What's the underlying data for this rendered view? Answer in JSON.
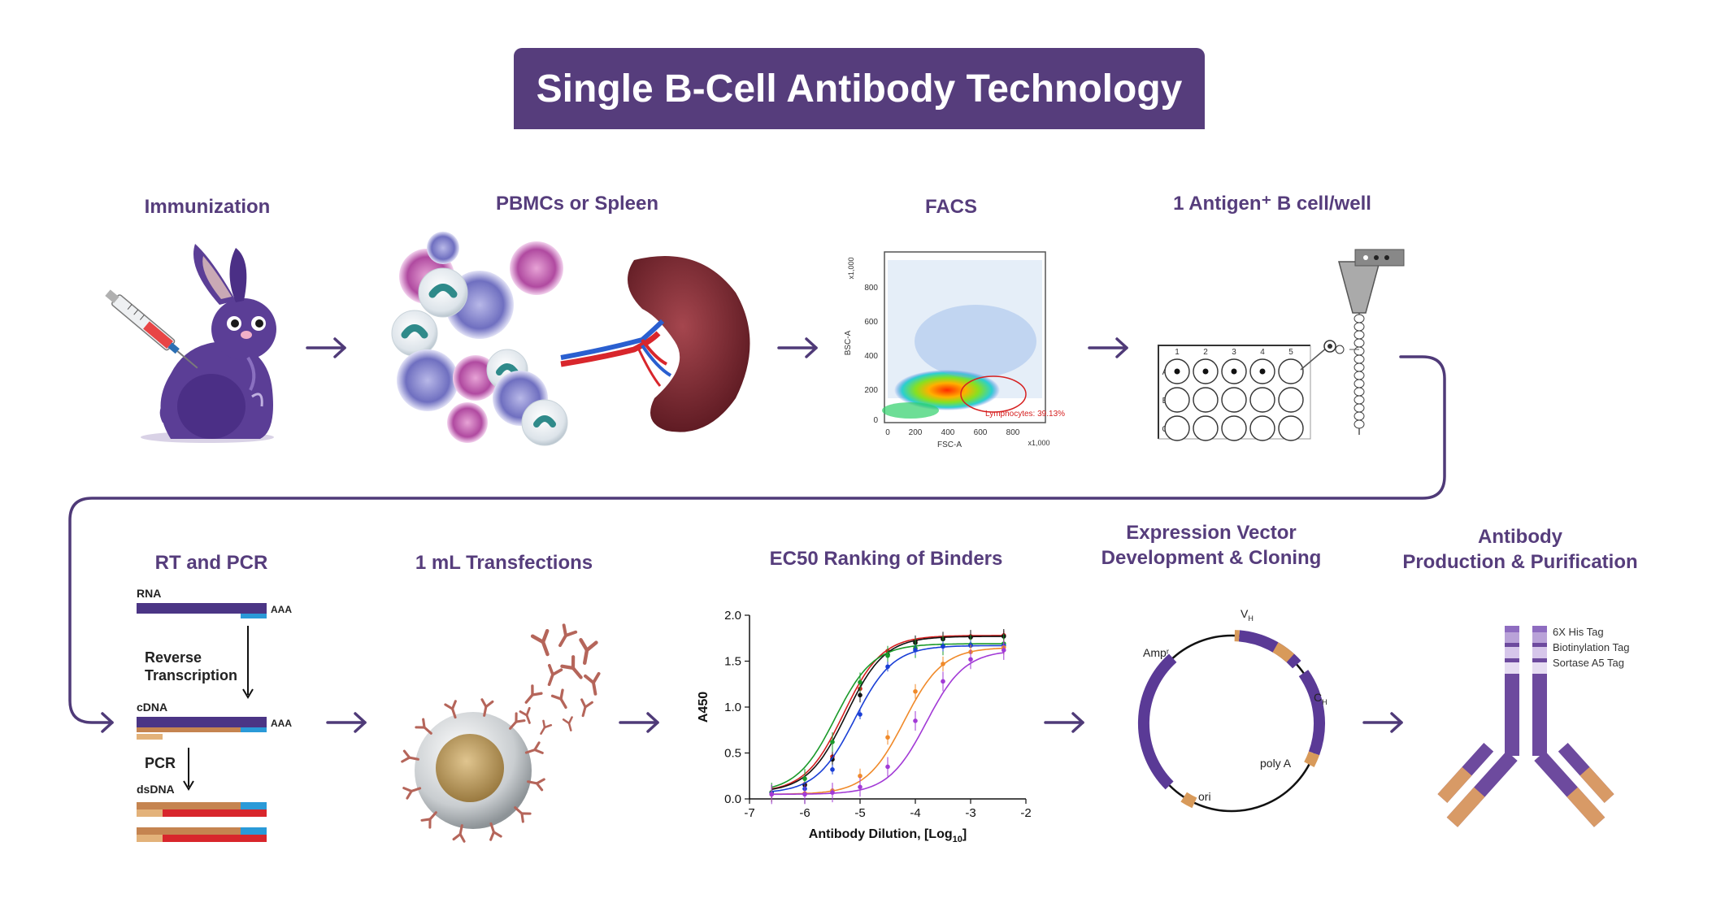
{
  "title": "Single B-Cell Antibody Technology",
  "steps": {
    "immunization": "Immunization",
    "pbmcs": "PBMCs or Spleen",
    "facs": "FACS",
    "antigen_cell": "1 Antigen⁺ B cell/well",
    "rt_pcr": "RT and PCR",
    "transfections": "1 mL Transfections",
    "ec50": "EC50 Ranking of Binders",
    "vector_line1": "Expression Vector",
    "vector_line2": "Development & Cloning",
    "antibody_line1": "Antibody",
    "antibody_line2": "Production & Purification"
  },
  "facs_plot": {
    "ylabel": "BSC-A",
    "xlabel": "FSC-A",
    "yscale": "x1,000",
    "xscale": "x1,000",
    "yticks": [
      "0",
      "200",
      "400",
      "600",
      "800"
    ],
    "xticks": [
      "0",
      "200",
      "400",
      "600",
      "800"
    ],
    "gate_label": "Lymphocytes: 39.13%"
  },
  "well_plate": {
    "columns": [
      "1",
      "2",
      "3",
      "4",
      "5"
    ],
    "rows": [
      "A",
      "B",
      "C"
    ]
  },
  "rt_pcr_diagram": {
    "rna": "RNA",
    "polya1": "AAA",
    "reverse1": "Reverse",
    "reverse2": "Transcription",
    "cdna": "cDNA",
    "polya2": "AAA",
    "pcr": "PCR",
    "dsdna": "dsDNA"
  },
  "chart_data": {
    "type": "line",
    "xlabel_main": "Antibody Dilution, [Log",
    "xlabel_sub": "10",
    "xlabel_end": "]",
    "ylabel": "A450",
    "xlim": [
      -7,
      -2
    ],
    "ylim": [
      0,
      2.0
    ],
    "xticks": [
      "-7",
      "-6",
      "-5",
      "-4",
      "-3",
      "-2"
    ],
    "yticks": [
      "0.0",
      "0.5",
      "1.0",
      "1.5",
      "2.0"
    ],
    "x": [
      -6.6,
      -6.0,
      -5.5,
      -5.0,
      -4.5,
      -4.0,
      -3.5,
      -3.0,
      -2.4
    ],
    "series": [
      {
        "color": "#d62020",
        "values": [
          0.07,
          0.16,
          0.46,
          1.2,
          1.61,
          1.72,
          1.75,
          1.77,
          1.78
        ],
        "ec50": -5.3
      },
      {
        "color": "#111111",
        "values": [
          0.07,
          0.15,
          0.43,
          1.13,
          1.57,
          1.7,
          1.74,
          1.76,
          1.77
        ],
        "ec50": -5.25
      },
      {
        "color": "#1a9a2a",
        "values": [
          0.07,
          0.22,
          0.62,
          1.27,
          1.56,
          1.64,
          1.67,
          1.68,
          1.69
        ],
        "ec50": -5.45
      },
      {
        "color": "#1a3fd6",
        "values": [
          0.06,
          0.11,
          0.32,
          0.92,
          1.44,
          1.62,
          1.66,
          1.67,
          1.67
        ],
        "ec50": -5.1
      },
      {
        "color": "#f08a2a",
        "values": [
          0.05,
          0.06,
          0.09,
          0.25,
          0.67,
          1.17,
          1.47,
          1.6,
          1.65
        ],
        "ec50": -4.2
      },
      {
        "color": "#a23ad6",
        "values": [
          0.05,
          0.05,
          0.07,
          0.13,
          0.35,
          0.85,
          1.28,
          1.52,
          1.62
        ],
        "ec50": -3.8
      }
    ]
  },
  "plasmid": {
    "ampr": "Ampʳ",
    "vh": "V",
    "vh_sub": "H",
    "ch": "C",
    "ch_sub": "H",
    "polya": "poly A",
    "ori": "ori"
  },
  "antibody_tags": {
    "tag1": "6X His Tag",
    "tag2": "Biotinylation Tag",
    "tag3": "Sortase A5 Tag"
  },
  "colors": {
    "brand_purple": "#563d7c",
    "arrow_purple": "#4f3a78",
    "plasmid_orange": "#d89a5a"
  }
}
